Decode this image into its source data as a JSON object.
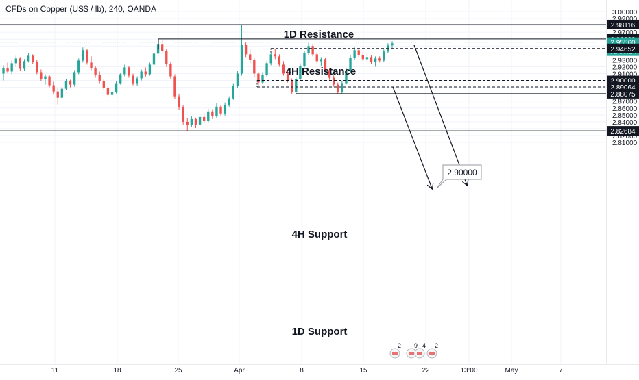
{
  "header": {
    "symbol_title": "CFDs on Copper (US$ / lb), 240, OANDA"
  },
  "colors": {
    "up": "#26a69a",
    "down": "#ef5350",
    "resistance_line": "#131722",
    "price_line": "#26a69a",
    "label_dark": "#131722",
    "label_price": "#26a69a",
    "grid": "#f0f3fa",
    "axis_text": "#131722"
  },
  "chart_data": {
    "type": "candlestick",
    "title": "CFDs on Copper (US$ / lb), 240, OANDA",
    "ylim": [
      2.805,
      3.005
    ],
    "y_ticks": [
      "3.00000",
      "2.99000",
      "2.98000",
      "2.97000",
      "2.96000",
      "2.95000",
      "2.94000",
      "2.93000",
      "2.92000",
      "2.91000",
      "2.90000",
      "2.89000",
      "2.88000",
      "2.87000",
      "2.86000",
      "2.85000",
      "2.84000",
      "2.83000",
      "2.82000",
      "2.81000"
    ],
    "x_ticks": [
      "11",
      "18",
      "25",
      "Apr",
      "8",
      "15",
      "22",
      "13:00",
      "May",
      "7"
    ],
    "candles_ohlc": [
      [
        2.91,
        2.922,
        2.9,
        2.918
      ],
      [
        2.918,
        2.926,
        2.911,
        2.913
      ],
      [
        2.913,
        2.929,
        2.909,
        2.925
      ],
      [
        2.925,
        2.936,
        2.92,
        2.932
      ],
      [
        2.932,
        2.934,
        2.914,
        2.917
      ],
      [
        2.917,
        2.931,
        2.914,
        2.928
      ],
      [
        2.928,
        2.94,
        2.926,
        2.936
      ],
      [
        2.936,
        2.938,
        2.924,
        2.927
      ],
      [
        2.927,
        2.93,
        2.909,
        2.912
      ],
      [
        2.912,
        2.916,
        2.899,
        2.902
      ],
      [
        2.902,
        2.909,
        2.894,
        2.906
      ],
      [
        2.906,
        2.908,
        2.89,
        2.893
      ],
      [
        2.893,
        2.898,
        2.88,
        2.884
      ],
      [
        2.884,
        2.889,
        2.865,
        2.875
      ],
      [
        2.875,
        2.891,
        2.873,
        2.888
      ],
      [
        2.888,
        2.902,
        2.886,
        2.899
      ],
      [
        2.899,
        2.901,
        2.89,
        2.894
      ],
      [
        2.894,
        2.915,
        2.891,
        2.912
      ],
      [
        2.912,
        2.932,
        2.909,
        2.929
      ],
      [
        2.929,
        2.948,
        2.926,
        2.944
      ],
      [
        2.944,
        2.946,
        2.923,
        2.926
      ],
      [
        2.926,
        2.935,
        2.915,
        2.918
      ],
      [
        2.918,
        2.921,
        2.904,
        2.908
      ],
      [
        2.908,
        2.913,
        2.896,
        2.899
      ],
      [
        2.899,
        2.902,
        2.886,
        2.889
      ],
      [
        2.889,
        2.892,
        2.876,
        2.879
      ],
      [
        2.879,
        2.886,
        2.873,
        2.883
      ],
      [
        2.883,
        2.899,
        2.881,
        2.896
      ],
      [
        2.896,
        2.911,
        2.894,
        2.909
      ],
      [
        2.909,
        2.923,
        2.906,
        2.919
      ],
      [
        2.919,
        2.921,
        2.904,
        2.907
      ],
      [
        2.907,
        2.91,
        2.893,
        2.896
      ],
      [
        2.896,
        2.906,
        2.892,
        2.903
      ],
      [
        2.903,
        2.916,
        2.9,
        2.913
      ],
      [
        2.913,
        2.919,
        2.905,
        2.909
      ],
      [
        2.909,
        2.926,
        2.907,
        2.923
      ],
      [
        2.923,
        2.942,
        2.921,
        2.939
      ],
      [
        2.939,
        2.956,
        2.936,
        2.953
      ],
      [
        2.953,
        2.96,
        2.94,
        2.943
      ],
      [
        2.943,
        2.946,
        2.92,
        2.924
      ],
      [
        2.924,
        2.927,
        2.902,
        2.906
      ],
      [
        2.906,
        2.909,
        2.873,
        2.877
      ],
      [
        2.877,
        2.88,
        2.857,
        2.861
      ],
      [
        2.861,
        2.864,
        2.836,
        2.84
      ],
      [
        2.84,
        2.845,
        2.826,
        2.835
      ],
      [
        2.835,
        2.848,
        2.832,
        2.844
      ],
      [
        2.844,
        2.846,
        2.831,
        2.836
      ],
      [
        2.836,
        2.85,
        2.834,
        2.847
      ],
      [
        2.847,
        2.853,
        2.838,
        2.841
      ],
      [
        2.841,
        2.859,
        2.839,
        2.855
      ],
      [
        2.855,
        2.858,
        2.844,
        2.848
      ],
      [
        2.848,
        2.867,
        2.846,
        2.862
      ],
      [
        2.862,
        2.864,
        2.849,
        2.852
      ],
      [
        2.852,
        2.868,
        2.849,
        2.864
      ],
      [
        2.864,
        2.877,
        2.862,
        2.874
      ],
      [
        2.874,
        2.896,
        2.872,
        2.892
      ],
      [
        2.892,
        2.914,
        2.889,
        2.91
      ],
      [
        2.91,
        2.981,
        2.907,
        2.952
      ],
      [
        2.952,
        2.955,
        2.934,
        2.938
      ],
      [
        2.938,
        2.945,
        2.925,
        2.93
      ],
      [
        2.93,
        2.933,
        2.905,
        2.91
      ],
      [
        2.91,
        2.912,
        2.893,
        2.897
      ],
      [
        2.897,
        2.912,
        2.895,
        2.908
      ],
      [
        2.908,
        2.928,
        2.906,
        2.925
      ],
      [
        2.925,
        2.941,
        2.922,
        2.938
      ],
      [
        2.938,
        2.946,
        2.931,
        2.935
      ],
      [
        2.935,
        2.938,
        2.92,
        2.923
      ],
      [
        2.923,
        2.928,
        2.907,
        2.91
      ],
      [
        2.91,
        2.914,
        2.897,
        2.9
      ],
      [
        2.9,
        2.903,
        2.88,
        2.883
      ],
      [
        2.883,
        2.905,
        2.881,
        2.902
      ],
      [
        2.902,
        2.925,
        2.9,
        2.921
      ],
      [
        2.921,
        2.943,
        2.919,
        2.94
      ],
      [
        2.94,
        2.955,
        2.937,
        2.95
      ],
      [
        2.95,
        2.953,
        2.935,
        2.938
      ],
      [
        2.938,
        2.941,
        2.925,
        2.928
      ],
      [
        2.928,
        2.934,
        2.921,
        2.931
      ],
      [
        2.931,
        2.933,
        2.912,
        2.915
      ],
      [
        2.915,
        2.918,
        2.901,
        2.904
      ],
      [
        2.904,
        2.907,
        2.891,
        2.894
      ],
      [
        2.894,
        2.897,
        2.88,
        2.883
      ],
      [
        2.883,
        2.899,
        2.881,
        2.896
      ],
      [
        2.896,
        2.918,
        2.894,
        2.914
      ],
      [
        2.914,
        2.937,
        2.912,
        2.933
      ],
      [
        2.933,
        2.948,
        2.93,
        2.944
      ],
      [
        2.944,
        2.946,
        2.934,
        2.937
      ],
      [
        2.937,
        2.941,
        2.928,
        2.931
      ],
      [
        2.931,
        2.939,
        2.927,
        2.934
      ],
      [
        2.934,
        2.937,
        2.924,
        2.927
      ],
      [
        2.927,
        2.935,
        2.92,
        2.932
      ],
      [
        2.932,
        2.935,
        2.926,
        2.929
      ],
      [
        2.929,
        2.945,
        2.927,
        2.942
      ],
      [
        2.942,
        2.954,
        2.94,
        2.951
      ],
      [
        2.951,
        2.957,
        2.946,
        2.954
      ]
    ],
    "annotations": {
      "resistance_1d": {
        "label": "1D Resistance",
        "price": 2.98116,
        "price_label": "2.98116"
      },
      "resistance_4h": {
        "label": "4H Resistance",
        "price": 2.96038,
        "price_label": "2.96038"
      },
      "support_4h": {
        "label": "4H Support",
        "price": 2.88075,
        "price_label": "2.88075"
      },
      "support_1d": {
        "label": "1D Support",
        "price": 2.82684,
        "price_label": "2.82684"
      },
      "dashed_levels": [
        {
          "price": 2.94652,
          "price_label": "2.94652"
        },
        {
          "price": 2.9,
          "price_label": "2.90000"
        },
        {
          "price": 2.89064,
          "price_label": "2.89064"
        }
      ],
      "current_price": {
        "price": 2.9556,
        "price_label": "2.95560",
        "countdown": "01:59:24"
      },
      "target_callout": "2.90000"
    },
    "event_icons": [
      {
        "count": "2"
      },
      {
        "count": "9"
      },
      {
        "count": "4"
      },
      {
        "count": "2"
      }
    ]
  }
}
